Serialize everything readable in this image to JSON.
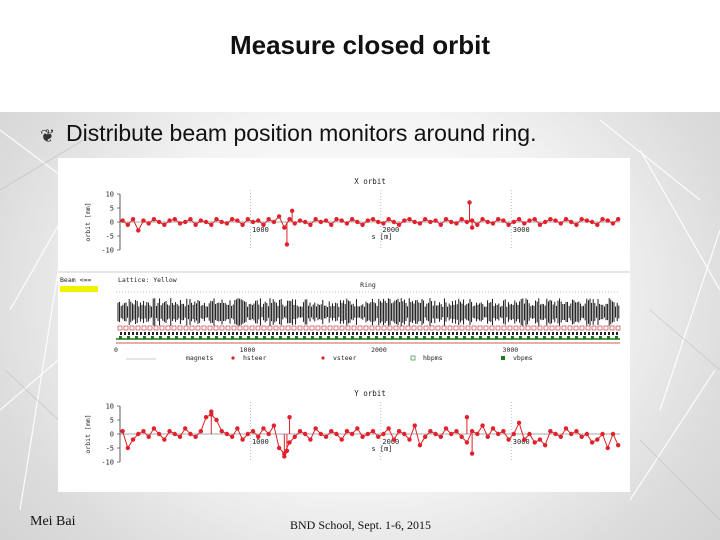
{
  "slide": {
    "title": "Measure closed orbit",
    "bullet_text": "Distribute beam position monitors around ring.",
    "footer_left": "Mei Bai",
    "footer_center": "BND School, Sept. 1-6, 2015"
  },
  "colors": {
    "data": "#e0202a",
    "grid": "#999999",
    "lattice": "#000000",
    "sextupole": "#c02020",
    "quad": "#1e7a1e",
    "beam_marker": "#f2f200"
  },
  "chart_data": [
    {
      "type": "line",
      "title": "X orbit",
      "xlabel": "s [m]",
      "ylabel": "orbit [mm]",
      "xlim": [
        0,
        3834
      ],
      "ylim": [
        -10,
        10
      ],
      "x_ticks": [
        1000,
        2000,
        3000
      ],
      "y_ticks": [
        10,
        5,
        0,
        -5,
        -10
      ],
      "x_tick_labels": [
        "1000",
        "2000",
        "3000"
      ],
      "y_tick_labels": [
        "10",
        "5",
        "0",
        "-5",
        "-10"
      ],
      "series": [
        {
          "x": [
            20,
            60,
            100,
            140,
            180,
            220,
            260,
            300,
            340,
            380,
            420,
            460,
            500,
            540,
            580,
            620,
            660,
            700,
            740,
            780,
            820,
            860,
            900,
            940,
            980,
            1020,
            1060,
            1100,
            1140,
            1180,
            1220,
            1260,
            1300,
            1340,
            1380,
            1420,
            1460,
            1500,
            1540,
            1580,
            1620,
            1660,
            1700,
            1740,
            1780,
            1820,
            1860,
            1900,
            1940,
            1980,
            2020,
            2060,
            2100,
            2140,
            2180,
            2220,
            2260,
            2300,
            2340,
            2380,
            2420,
            2460,
            2500,
            2540,
            2580,
            2620,
            2660,
            2700,
            2740,
            2780,
            2820,
            2860,
            2900,
            2940,
            2980,
            3020,
            3060,
            3100,
            3140,
            3180,
            3220,
            3260,
            3300,
            3340,
            3380,
            3420,
            3460,
            3500,
            3540,
            3580,
            3620,
            3660,
            3700,
            3740,
            3780,
            3820
          ],
          "y": [
            0.5,
            -1,
            1,
            -3,
            0.5,
            -0.5,
            1,
            0,
            -1,
            0.5,
            1,
            -0.5,
            0,
            1,
            -1,
            0.5,
            0,
            -1,
            1,
            0,
            -0.5,
            1,
            0.5,
            -1,
            1,
            0,
            0.5,
            -1,
            1,
            0,
            2,
            -2,
            1,
            -0.5,
            0.5,
            0,
            -1,
            1,
            0,
            0.5,
            -1,
            1,
            0.5,
            -0.5,
            1,
            0,
            -1,
            0.5,
            1,
            0,
            -0.5,
            1,
            0,
            -1,
            0.5,
            1,
            0,
            -0.5,
            1,
            0,
            0.5,
            -1,
            1,
            0,
            -0.5,
            1,
            0,
            0.5,
            -1,
            1,
            0,
            -0.5,
            1,
            0.5,
            -1,
            0,
            1,
            -0.5,
            0.5,
            1,
            -1,
            0,
            1,
            0.5,
            -0.5,
            1,
            0,
            -1,
            1,
            0.5,
            0,
            -1,
            1,
            0.5,
            -0.5,
            1
          ]
        }
      ],
      "spikes": [
        [
          1280,
          -8
        ],
        [
          1320,
          4
        ],
        [
          2680,
          7
        ],
        [
          2700,
          -2
        ]
      ]
    },
    {
      "type": "lattice",
      "header_left": "Beam <==",
      "header_mid": "Lattice: Yellow",
      "header_center": "Ring",
      "x_ticks": [
        0,
        1000,
        2000,
        3000
      ],
      "x_tick_labels": [
        "0",
        "1000",
        "2000",
        "3000"
      ],
      "xlim": [
        0,
        3834
      ],
      "legend": [
        "magnets",
        "hsteer",
        "vsteer",
        "hbpms",
        "vbpms"
      ]
    },
    {
      "type": "line",
      "title": "Y orbit",
      "xlabel": "s [m]",
      "ylabel": "orbit [mm]",
      "xlim": [
        0,
        3834
      ],
      "ylim": [
        -10,
        10
      ],
      "x_ticks": [
        1000,
        2000,
        3000
      ],
      "y_ticks": [
        10,
        5,
        0,
        -5,
        -10
      ],
      "x_tick_labels": [
        "1000",
        "2000",
        "3000"
      ],
      "y_tick_labels": [
        "10",
        "5",
        "0",
        "-5",
        "-10"
      ],
      "series": [
        {
          "x": [
            20,
            60,
            100,
            140,
            180,
            220,
            260,
            300,
            340,
            380,
            420,
            460,
            500,
            540,
            580,
            620,
            660,
            700,
            740,
            780,
            820,
            860,
            900,
            940,
            980,
            1020,
            1060,
            1100,
            1140,
            1180,
            1220,
            1260,
            1300,
            1340,
            1380,
            1420,
            1460,
            1500,
            1540,
            1580,
            1620,
            1660,
            1700,
            1740,
            1780,
            1820,
            1860,
            1900,
            1940,
            1980,
            2020,
            2060,
            2100,
            2140,
            2180,
            2220,
            2260,
            2300,
            2340,
            2380,
            2420,
            2460,
            2500,
            2540,
            2580,
            2620,
            2660,
            2700,
            2740,
            2780,
            2820,
            2860,
            2900,
            2940,
            2980,
            3020,
            3060,
            3100,
            3140,
            3180,
            3220,
            3260,
            3300,
            3340,
            3380,
            3420,
            3460,
            3500,
            3540,
            3580,
            3620,
            3660,
            3700,
            3740,
            3780,
            3820
          ],
          "y": [
            1,
            -5,
            -2,
            0,
            1,
            -1,
            2,
            0,
            -2,
            1,
            0,
            -1,
            2,
            0,
            -1,
            1,
            6,
            7,
            5,
            1,
            0,
            -1,
            2,
            -2,
            0,
            1,
            -1,
            2,
            0,
            3,
            -5,
            -7,
            -3,
            -1,
            1,
            0,
            -2,
            2,
            0,
            -1,
            1,
            0,
            -2,
            1,
            0,
            2,
            -1,
            0,
            1,
            -1,
            0,
            2,
            -2,
            1,
            0,
            -2,
            3,
            -4,
            -1,
            1,
            0,
            -1,
            2,
            0,
            1,
            -1,
            -3,
            1,
            0,
            3,
            -1,
            2,
            0,
            1,
            -2,
            0,
            4,
            -2,
            0,
            -3,
            -2,
            -4,
            1,
            0,
            -1,
            2,
            0,
            1,
            -1,
            0,
            -3,
            -2,
            0,
            -5,
            0,
            -4
          ]
        }
      ],
      "spikes": [
        [
          700,
          8
        ],
        [
          1260,
          -8
        ],
        [
          1280,
          -6
        ],
        [
          1300,
          6
        ],
        [
          2660,
          6
        ],
        [
          2700,
          -7
        ]
      ]
    }
  ]
}
